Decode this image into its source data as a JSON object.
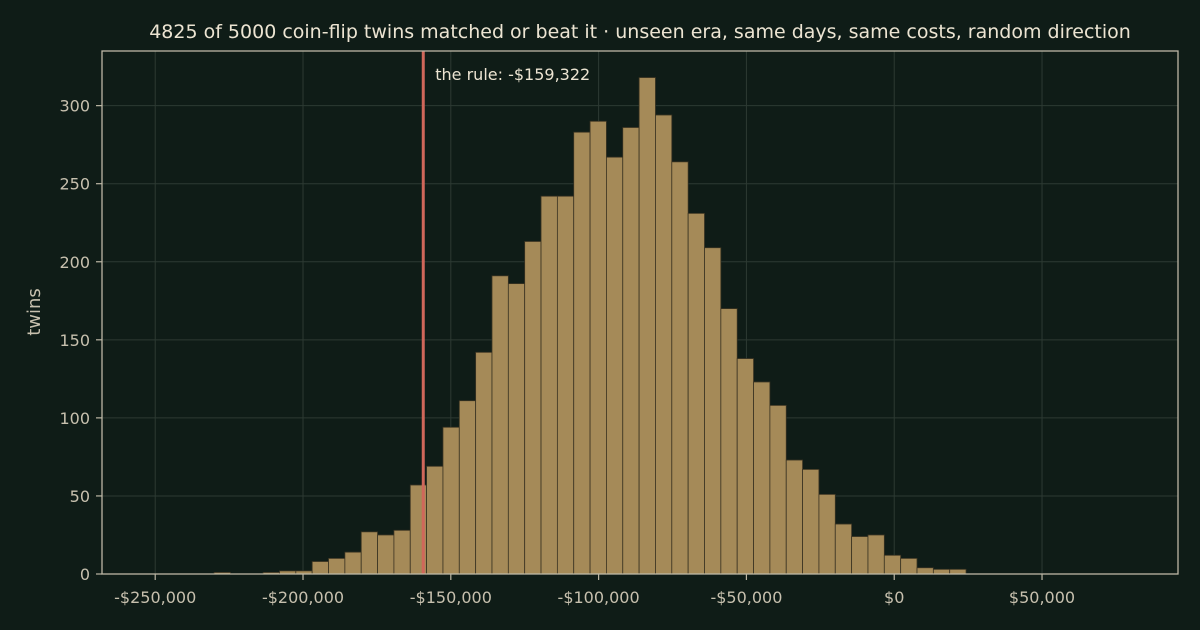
{
  "chart_data": {
    "type": "bar",
    "title": "4825 of 5000 coin-flip twins matched or beat it  ·  unseen era, same days, same costs, random direction",
    "xlabel": "",
    "ylabel": "twins",
    "xlim": [
      -268000,
      96000
    ],
    "ylim": [
      0,
      335
    ],
    "x_ticks": [
      -250000,
      -200000,
      -150000,
      -100000,
      -50000,
      0,
      50000
    ],
    "x_tick_labels": [
      "-$250,000",
      "-$200,000",
      "-$150,000",
      "-$100,000",
      "-$50,000",
      "$0",
      "$50,000"
    ],
    "y_ticks": [
      0,
      50,
      100,
      150,
      200,
      250,
      300
    ],
    "y_tick_labels": [
      "0",
      "50",
      "100",
      "150",
      "200",
      "250",
      "300"
    ],
    "grid": true,
    "bin_width": 5530,
    "bin_starts": [
      -230080,
      -224550,
      -219020,
      -213490,
      -207960,
      -202430,
      -196900,
      -191370,
      -185840,
      -180310,
      -174780,
      -169250,
      -163720,
      -158190,
      -152660,
      -147130,
      -141600,
      -136070,
      -130540,
      -125010,
      -119480,
      -113950,
      -108420,
      -102890,
      -97360,
      -91830,
      -86300,
      -80770,
      -75240,
      -69710,
      -64180,
      -58650,
      -53120,
      -47590,
      -42060,
      -36530,
      -31000,
      -25470,
      -19940,
      -14410,
      -8880,
      -3350,
      2180,
      7710,
      13240,
      18770
    ],
    "values": [
      1,
      0,
      0,
      1,
      2,
      2,
      8,
      10,
      14,
      27,
      25,
      28,
      57,
      69,
      94,
      111,
      142,
      191,
      186,
      213,
      242,
      242,
      283,
      290,
      267,
      286,
      318,
      294,
      264,
      231,
      209,
      170,
      138,
      123,
      108,
      73,
      67,
      51,
      32,
      24,
      25,
      12,
      10,
      4,
      3,
      3
    ],
    "marker": {
      "value": -159322,
      "label": "the rule: -$159,322",
      "color": "#d0675a"
    },
    "bar_color": "#a58a58",
    "background": "#0f1c17"
  }
}
